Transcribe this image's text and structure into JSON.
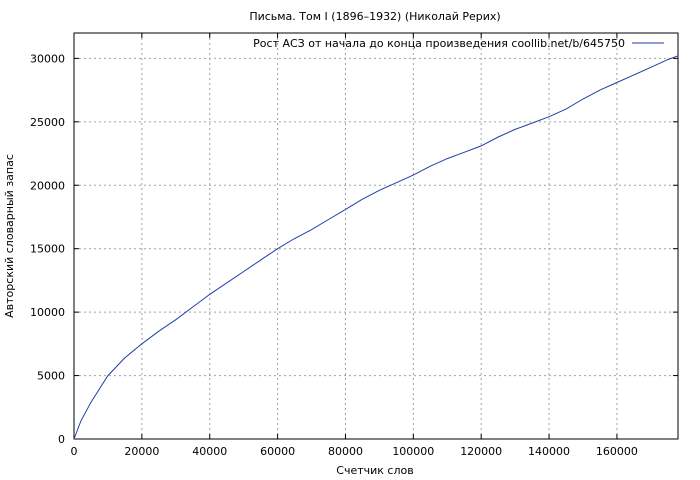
{
  "chart_data": {
    "type": "line",
    "title": "Письма. Том I (1896–1932) (Николай Рерих)",
    "xlabel": "Счетчик слов",
    "ylabel": "Авторский словарный запас",
    "xlim": [
      0,
      178000
    ],
    "ylim": [
      0,
      32000
    ],
    "xticks": [
      0,
      20000,
      40000,
      60000,
      80000,
      100000,
      120000,
      140000,
      160000
    ],
    "yticks": [
      0,
      5000,
      10000,
      15000,
      20000,
      25000,
      30000
    ],
    "grid": true,
    "legend_position": "top-right",
    "line_color": "#1f3fa8",
    "series": [
      {
        "name": "Рост АСЗ от начала до конца произведения coollib.net/b/645750",
        "x": [
          0,
          2000,
          5000,
          10000,
          15000,
          20000,
          25000,
          30000,
          35000,
          40000,
          45000,
          50000,
          55000,
          60000,
          65000,
          70000,
          75000,
          80000,
          85000,
          90000,
          95000,
          100000,
          105000,
          110000,
          115000,
          120000,
          125000,
          130000,
          135000,
          140000,
          145000,
          150000,
          155000,
          160000,
          165000,
          170000,
          175000,
          178000
        ],
        "y": [
          0,
          1400,
          2900,
          5000,
          6400,
          7500,
          8500,
          9400,
          10400,
          11400,
          12300,
          13200,
          14100,
          15000,
          15800,
          16500,
          17300,
          18100,
          18900,
          19600,
          20200,
          20800,
          21500,
          22100,
          22600,
          23100,
          23800,
          24400,
          24900,
          25400,
          26000,
          26800,
          27500,
          28100,
          28700,
          29300,
          29900,
          30200
        ]
      }
    ]
  }
}
